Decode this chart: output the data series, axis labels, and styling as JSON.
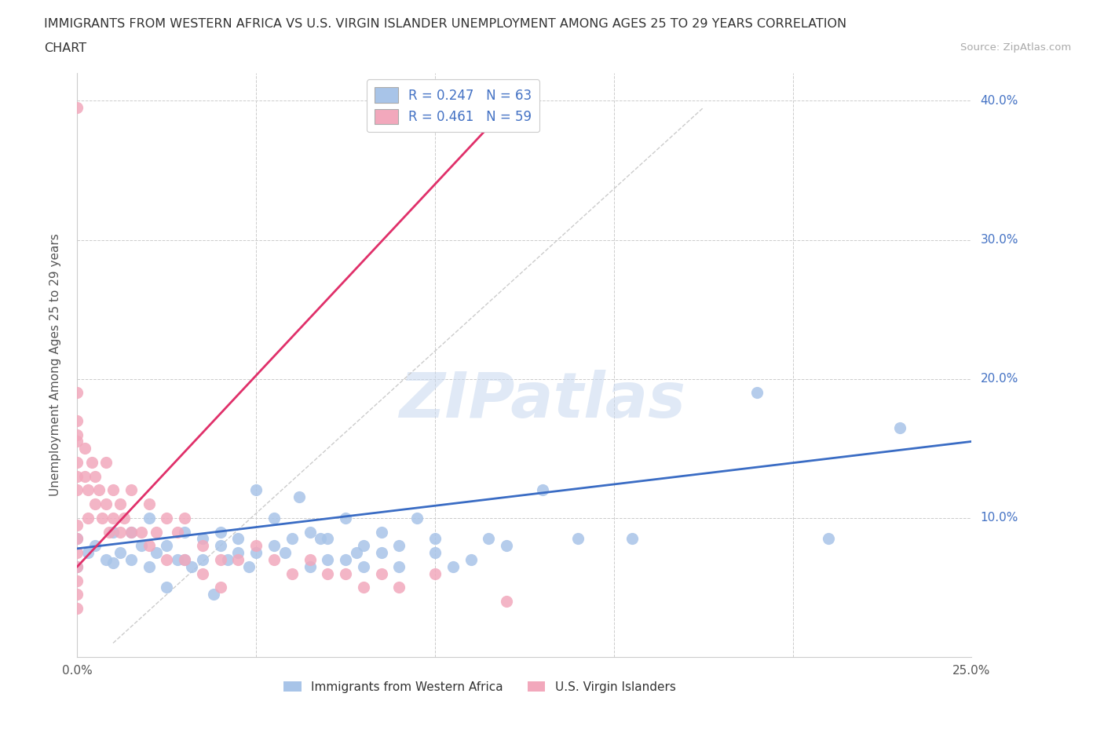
{
  "title_line1": "IMMIGRANTS FROM WESTERN AFRICA VS U.S. VIRGIN ISLANDER UNEMPLOYMENT AMONG AGES 25 TO 29 YEARS CORRELATION",
  "title_line2": "CHART",
  "source_text": "Source: ZipAtlas.com",
  "ylabel": "Unemployment Among Ages 25 to 29 years",
  "xlim": [
    0.0,
    0.25
  ],
  "ylim": [
    0.0,
    0.42
  ],
  "ytick_positions": [
    0.0,
    0.1,
    0.2,
    0.3,
    0.4
  ],
  "ytick_labels": [
    "",
    "10.0%",
    "20.0%",
    "30.0%",
    "40.0%"
  ],
  "xtick_positions": [
    0.0,
    0.05,
    0.1,
    0.15,
    0.2,
    0.25
  ],
  "xtick_labels": [
    "0.0%",
    "",
    "",
    "",
    "",
    "25.0%"
  ],
  "watermark_text": "ZIPatlas",
  "legend_entry1": "R = 0.247   N = 63",
  "legend_entry2": "R = 0.461   N = 59",
  "color_blue": "#a8c4e8",
  "color_pink": "#f2a8bc",
  "line_color_blue": "#3a6cc4",
  "line_color_pink": "#e0306a",
  "line_color_diag": "#cccccc",
  "bottom_legend1": "Immigrants from Western Africa",
  "bottom_legend2": "U.S. Virgin Islanders",
  "blue_scatter_x": [
    0.0,
    0.0,
    0.003,
    0.005,
    0.008,
    0.01,
    0.01,
    0.012,
    0.015,
    0.015,
    0.018,
    0.02,
    0.02,
    0.022,
    0.025,
    0.025,
    0.028,
    0.03,
    0.03,
    0.032,
    0.035,
    0.035,
    0.038,
    0.04,
    0.04,
    0.042,
    0.045,
    0.045,
    0.048,
    0.05,
    0.05,
    0.055,
    0.055,
    0.058,
    0.06,
    0.062,
    0.065,
    0.065,
    0.068,
    0.07,
    0.07,
    0.075,
    0.075,
    0.078,
    0.08,
    0.08,
    0.085,
    0.085,
    0.09,
    0.09,
    0.095,
    0.1,
    0.1,
    0.105,
    0.11,
    0.115,
    0.12,
    0.13,
    0.14,
    0.155,
    0.19,
    0.21,
    0.23
  ],
  "blue_scatter_y": [
    0.065,
    0.085,
    0.075,
    0.08,
    0.07,
    0.068,
    0.09,
    0.075,
    0.07,
    0.09,
    0.08,
    0.065,
    0.1,
    0.075,
    0.08,
    0.05,
    0.07,
    0.07,
    0.09,
    0.065,
    0.07,
    0.085,
    0.045,
    0.08,
    0.09,
    0.07,
    0.075,
    0.085,
    0.065,
    0.075,
    0.12,
    0.08,
    0.1,
    0.075,
    0.085,
    0.115,
    0.065,
    0.09,
    0.085,
    0.07,
    0.085,
    0.07,
    0.1,
    0.075,
    0.065,
    0.08,
    0.075,
    0.09,
    0.065,
    0.08,
    0.1,
    0.075,
    0.085,
    0.065,
    0.07,
    0.085,
    0.08,
    0.12,
    0.085,
    0.085,
    0.19,
    0.085,
    0.165
  ],
  "pink_scatter_x": [
    0.0,
    0.0,
    0.0,
    0.0,
    0.0,
    0.0,
    0.0,
    0.0,
    0.0,
    0.0,
    0.0,
    0.0,
    0.0,
    0.0,
    0.0,
    0.002,
    0.002,
    0.003,
    0.003,
    0.004,
    0.005,
    0.005,
    0.006,
    0.007,
    0.008,
    0.008,
    0.009,
    0.01,
    0.01,
    0.012,
    0.012,
    0.013,
    0.015,
    0.015,
    0.018,
    0.02,
    0.02,
    0.022,
    0.025,
    0.025,
    0.028,
    0.03,
    0.03,
    0.035,
    0.035,
    0.04,
    0.04,
    0.045,
    0.05,
    0.055,
    0.06,
    0.065,
    0.07,
    0.075,
    0.08,
    0.085,
    0.09,
    0.1,
    0.12
  ],
  "pink_scatter_y": [
    0.395,
    0.19,
    0.17,
    0.16,
    0.155,
    0.14,
    0.13,
    0.12,
    0.095,
    0.085,
    0.075,
    0.065,
    0.055,
    0.045,
    0.035,
    0.15,
    0.13,
    0.12,
    0.1,
    0.14,
    0.13,
    0.11,
    0.12,
    0.1,
    0.14,
    0.11,
    0.09,
    0.12,
    0.1,
    0.11,
    0.09,
    0.1,
    0.12,
    0.09,
    0.09,
    0.11,
    0.08,
    0.09,
    0.1,
    0.07,
    0.09,
    0.1,
    0.07,
    0.08,
    0.06,
    0.07,
    0.05,
    0.07,
    0.08,
    0.07,
    0.06,
    0.07,
    0.06,
    0.06,
    0.05,
    0.06,
    0.05,
    0.06,
    0.04
  ],
  "blue_trend_x0": 0.0,
  "blue_trend_y0": 0.078,
  "blue_trend_x1": 0.25,
  "blue_trend_y1": 0.155,
  "pink_trend_x0": 0.0,
  "pink_trend_y0": 0.065,
  "pink_trend_x1": 0.12,
  "pink_trend_y1": 0.395,
  "diag_line_x0": 0.01,
  "diag_line_y0": 0.01,
  "diag_line_x1": 0.175,
  "diag_line_y1": 0.395
}
